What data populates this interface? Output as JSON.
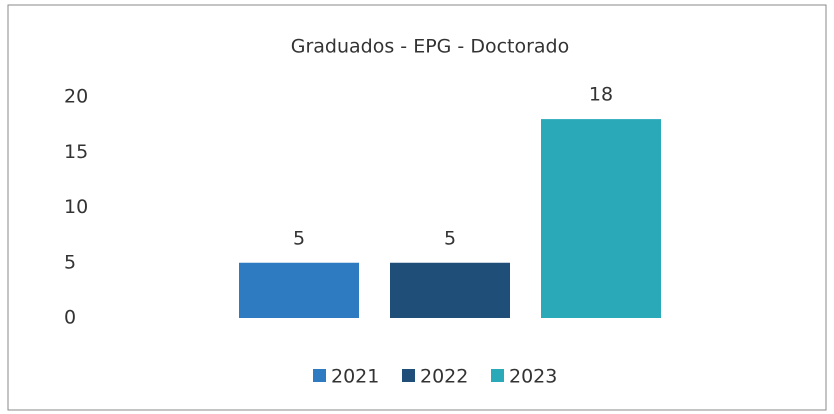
{
  "chart_data": {
    "type": "bar",
    "title": "Graduados - EPG - Doctorado",
    "categories": [
      null
    ],
    "series": [
      {
        "name": "2021",
        "color": "#2e7bc2",
        "values": [
          5
        ]
      },
      {
        "name": "2022",
        "color": "#1f4e79",
        "values": [
          5
        ]
      },
      {
        "name": "2023",
        "color": "#2aaab9",
        "values": [
          18
        ]
      }
    ],
    "ylim": [
      0,
      20
    ],
    "yticks": [
      0,
      5,
      10,
      15,
      20
    ],
    "grid": false,
    "legend": "bottom"
  }
}
